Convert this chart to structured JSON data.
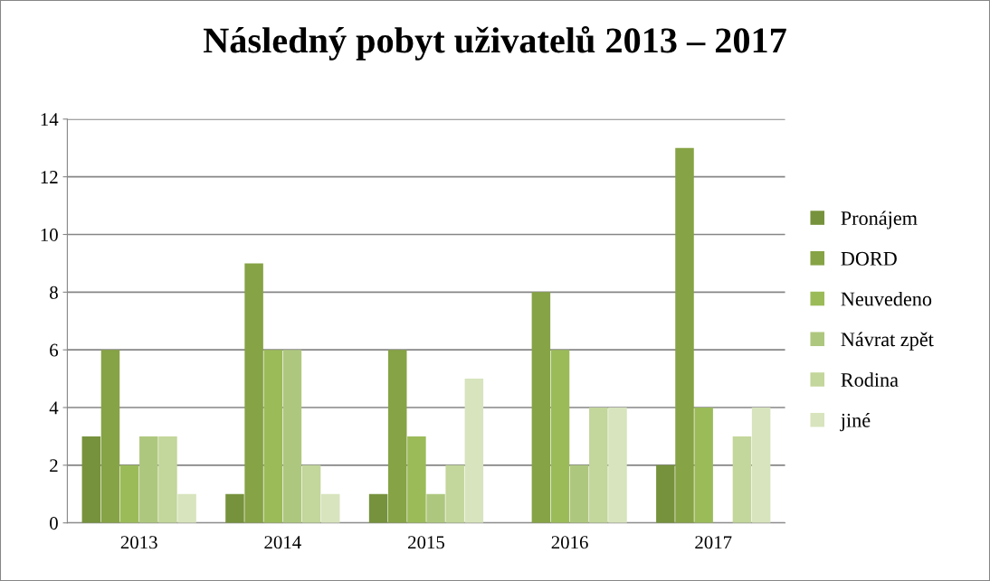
{
  "chart_data": {
    "type": "bar",
    "title": "Následný pobyt uživatelů 2013 – 2017",
    "categories": [
      "2013",
      "2014",
      "2015",
      "2016",
      "2017"
    ],
    "series": [
      {
        "name": "Pronájem",
        "color": "#76923c",
        "values": [
          3,
          1,
          1,
          0,
          2
        ]
      },
      {
        "name": "DORD",
        "color": "#86a345",
        "values": [
          6,
          9,
          6,
          8,
          13
        ]
      },
      {
        "name": "Neuvedeno",
        "color": "#9bbb59",
        "values": [
          2,
          6,
          3,
          6,
          4
        ]
      },
      {
        "name": "Návrat zpět",
        "color": "#aec77f",
        "values": [
          3,
          6,
          1,
          2,
          0
        ]
      },
      {
        "name": "Rodina",
        "color": "#c3d69b",
        "values": [
          3,
          2,
          2,
          4,
          3
        ]
      },
      {
        "name": "jiné",
        "color": "#d7e4bd",
        "values": [
          1,
          1,
          5,
          4,
          4
        ]
      }
    ],
    "ylim": [
      0,
      14
    ],
    "yticks": [
      0,
      2,
      4,
      6,
      8,
      10,
      12,
      14
    ],
    "grid": "y",
    "legend": "right"
  }
}
